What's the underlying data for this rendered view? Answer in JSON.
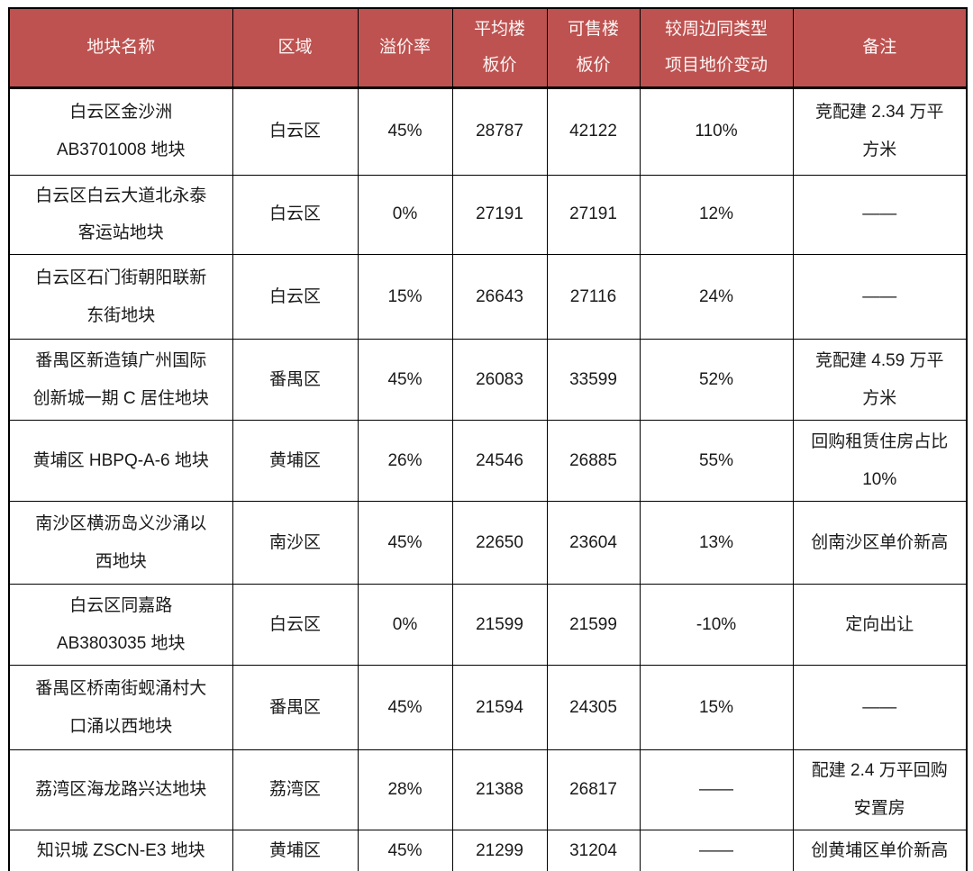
{
  "colors": {
    "header_bg": "#bd5250",
    "header_text": "#fdf6f5",
    "body_text": "#1a1a1a",
    "border": "#000000"
  },
  "table": {
    "columns": [
      "地块名称",
      "区域",
      "溢价率",
      "平均楼\n板价",
      "可售楼\n板价",
      "较周边同类型\n项目地价变动",
      "备注"
    ],
    "rows": [
      {
        "name": "白云区金沙洲\nAB3701008 地块",
        "district": "白云区",
        "premium_rate": "45%",
        "avg_floor_price": "28787",
        "sellable_floor_price": "42122",
        "change_vs_nearby": "110%",
        "note": "竞配建 2.34 万平\n方米"
      },
      {
        "name": "白云区白云大道北永泰\n客运站地块",
        "district": "白云区",
        "premium_rate": "0%",
        "avg_floor_price": "27191",
        "sellable_floor_price": "27191",
        "change_vs_nearby": "12%",
        "note": "——"
      },
      {
        "name": "白云区石门街朝阳联新\n东街地块",
        "district": "白云区",
        "premium_rate": "15%",
        "avg_floor_price": "26643",
        "sellable_floor_price": "27116",
        "change_vs_nearby": "24%",
        "note": "——"
      },
      {
        "name": "番禺区新造镇广州国际\n创新城一期 C 居住地块",
        "district": "番禺区",
        "premium_rate": "45%",
        "avg_floor_price": "26083",
        "sellable_floor_price": "33599",
        "change_vs_nearby": "52%",
        "note": "竞配建 4.59 万平\n方米"
      },
      {
        "name": "黄埔区 HBPQ-A-6 地块",
        "district": "黄埔区",
        "premium_rate": "26%",
        "avg_floor_price": "24546",
        "sellable_floor_price": "26885",
        "change_vs_nearby": "55%",
        "note": "回购租赁住房占比\n10%"
      },
      {
        "name": "南沙区横沥岛义沙涌以\n西地块",
        "district": "南沙区",
        "premium_rate": "45%",
        "avg_floor_price": "22650",
        "sellable_floor_price": "23604",
        "change_vs_nearby": "13%",
        "note": "创南沙区单价新高"
      },
      {
        "name": "白云区同嘉路\nAB3803035 地块",
        "district": "白云区",
        "premium_rate": "0%",
        "avg_floor_price": "21599",
        "sellable_floor_price": "21599",
        "change_vs_nearby": "-10%",
        "note": "定向出让"
      },
      {
        "name": "番禺区桥南街蚬涌村大\n口涌以西地块",
        "district": "番禺区",
        "premium_rate": "45%",
        "avg_floor_price": "21594",
        "sellable_floor_price": "24305",
        "change_vs_nearby": "15%",
        "note": "——"
      },
      {
        "name": "荔湾区海龙路兴达地块",
        "district": "荔湾区",
        "premium_rate": "28%",
        "avg_floor_price": "21388",
        "sellable_floor_price": "26817",
        "change_vs_nearby": "——",
        "note": "配建 2.4 万平回购\n安置房"
      },
      {
        "name": "知识城 ZSCN-E3 地块",
        "district": "黄埔区",
        "premium_rate": "45%",
        "avg_floor_price": "21299",
        "sellable_floor_price": "31204",
        "change_vs_nearby": "——",
        "note": "创黄埔区单价新高"
      }
    ]
  }
}
